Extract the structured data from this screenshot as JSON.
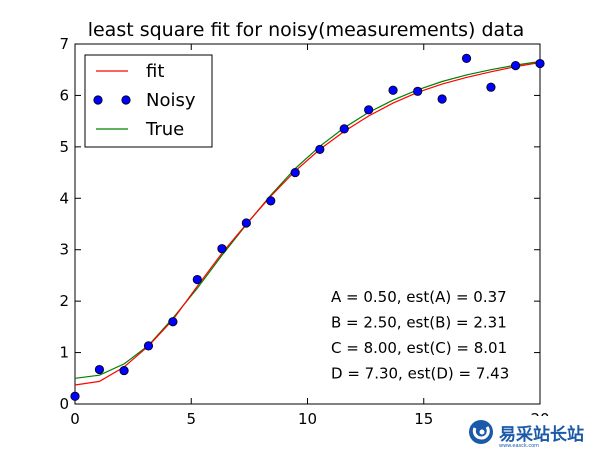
{
  "chart_data": {
    "type": "line",
    "title": "least square fit for noisy(measurements) data",
    "xlabel": "",
    "ylabel": "",
    "xlim": [
      0,
      20
    ],
    "ylim": [
      0,
      7
    ],
    "x_ticks": [
      0,
      5,
      10,
      15,
      20
    ],
    "y_ticks": [
      0,
      1,
      2,
      3,
      4,
      5,
      6,
      7
    ],
    "grid": false,
    "legend": "top-left",
    "series": [
      {
        "name": "fit",
        "style": "line",
        "color": "#ff0000",
        "x": [
          0,
          1.05,
          2.11,
          3.16,
          4.21,
          5.26,
          6.32,
          7.37,
          8.42,
          9.47,
          10.53,
          11.58,
          12.63,
          13.68,
          14.74,
          15.79,
          16.84,
          17.89,
          18.95,
          20
        ],
        "y": [
          0.37,
          0.44,
          0.72,
          1.13,
          1.64,
          2.29,
          2.93,
          3.5,
          4.04,
          4.53,
          4.95,
          5.3,
          5.6,
          5.85,
          6.06,
          6.22,
          6.35,
          6.46,
          6.56,
          6.64
        ]
      },
      {
        "name": "Noisy",
        "style": "markers",
        "color": "#0000ff",
        "x": [
          0,
          1.05,
          2.11,
          3.16,
          4.21,
          5.26,
          6.32,
          7.37,
          8.42,
          9.47,
          10.53,
          11.58,
          12.63,
          13.68,
          14.74,
          15.79,
          16.84,
          17.89,
          18.95,
          20
        ],
        "y": [
          0.15,
          0.67,
          0.65,
          1.13,
          1.6,
          2.42,
          3.02,
          3.52,
          3.95,
          4.5,
          4.95,
          5.35,
          5.72,
          6.1,
          6.08,
          5.93,
          6.72,
          6.16,
          6.58,
          6.62
        ]
      },
      {
        "name": "True",
        "style": "line",
        "color": "#008000",
        "x": [
          0,
          1.05,
          2.11,
          3.16,
          4.21,
          5.26,
          6.32,
          7.37,
          8.42,
          9.47,
          10.53,
          11.58,
          12.63,
          13.68,
          14.74,
          15.79,
          16.84,
          17.89,
          18.95,
          20
        ],
        "y": [
          0.5,
          0.56,
          0.78,
          1.14,
          1.67,
          2.25,
          2.89,
          3.49,
          4.06,
          4.58,
          5.01,
          5.37,
          5.67,
          5.91,
          6.11,
          6.27,
          6.4,
          6.5,
          6.59,
          6.66
        ]
      }
    ],
    "annotations": [
      "A = 0.50, est(A) = 0.37",
      "B = 2.50, est(B) = 2.31",
      "C = 8.00, est(C) = 8.01",
      "D = 7.30, est(D) = 7.43"
    ]
  },
  "watermark": {
    "text": "易采站长站",
    "subtext": "www.easck.com"
  }
}
